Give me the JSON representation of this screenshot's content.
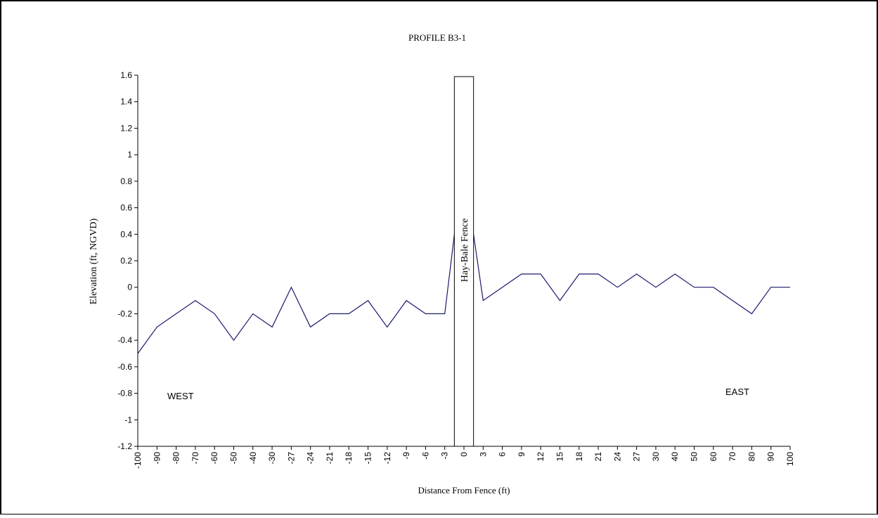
{
  "chart_data": {
    "type": "line",
    "title": "PROFILE B3-1",
    "xlabel": "Distance From Fence (ft)",
    "ylabel": "Elevation (ft, NGVD)",
    "categories": [
      "-100",
      "-90",
      "-80",
      "-70",
      "-60",
      "-50",
      "-40",
      "-30",
      "-27",
      "-24",
      "-21",
      "-18",
      "-15",
      "-12",
      "-9",
      "-6",
      "-3",
      "0",
      "3",
      "6",
      "9",
      "12",
      "15",
      "18",
      "21",
      "24",
      "27",
      "30",
      "40",
      "50",
      "60",
      "70",
      "80",
      "90",
      "100"
    ],
    "series": [
      {
        "name": "",
        "values": [
          -0.5,
          -0.3,
          -0.2,
          -0.1,
          -0.2,
          -0.4,
          -0.2,
          -0.3,
          0.0,
          -0.3,
          -0.2,
          -0.2,
          -0.1,
          -0.3,
          -0.1,
          -0.2,
          -0.2,
          null,
          -0.1,
          0.0,
          0.1,
          0.1,
          -0.1,
          0.1,
          0.1,
          0.0,
          0.1,
          0.0,
          0.1,
          0.0,
          0.0,
          -0.1,
          -0.2,
          0.0,
          0.0
        ]
      }
    ],
    "spike": {
      "from_index": 16,
      "to_index": 18,
      "peak_value": 0.4
    },
    "ylim": [
      -1.2,
      1.6
    ],
    "yticks": [
      "1.6",
      "1.4",
      "1.2",
      "1",
      "0.8",
      "0.6",
      "0.4",
      "0.2",
      "0",
      "-0.2",
      "-0.4",
      "-0.6",
      "-0.8",
      "-1",
      "-1.2"
    ],
    "ytick_values": [
      1.6,
      1.4,
      1.2,
      1.0,
      0.8,
      0.6,
      0.4,
      0.2,
      0.0,
      -0.2,
      -0.4,
      -0.6,
      -0.8,
      -1.0,
      -1.2
    ],
    "grid": false,
    "line_color": "#1a1a6e",
    "annotations": {
      "fence_label": "Hay-Bale Fence",
      "west_label": "WEST",
      "east_label": "EAST"
    },
    "fence_range_index": [
      16.5,
      17.5
    ]
  }
}
